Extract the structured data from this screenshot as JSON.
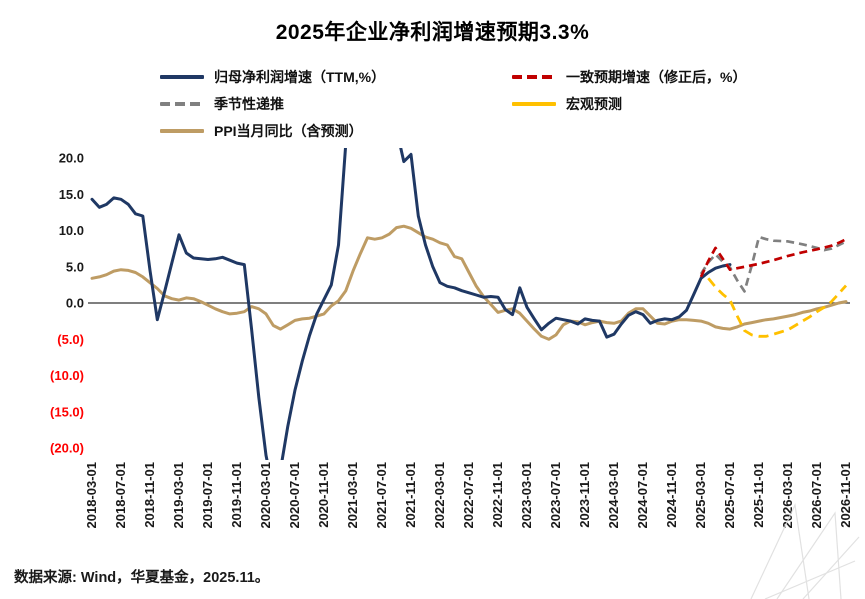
{
  "title": "2025年企业净利润增速预期3.3%",
  "source_note": "数据来源: Wind，华夏基金，2025.11。",
  "chart_data": {
    "type": "line",
    "title": "2025年企业净利润增速预期3.3%",
    "legend_position": "top",
    "grid": false,
    "months_span": 104,
    "x_tick_labels": [
      "2018-03-01",
      "2018-07-01",
      "2018-11-01",
      "2019-03-01",
      "2019-07-01",
      "2019-11-01",
      "2020-03-01",
      "2020-07-01",
      "2020-11-01",
      "2021-03-01",
      "2021-07-01",
      "2021-11-01",
      "2022-03-01",
      "2022-07-01",
      "2022-11-01",
      "2023-03-01",
      "2023-07-01",
      "2023-11-01",
      "2024-03-01",
      "2024-07-01",
      "2024-11-01",
      "2025-03-01",
      "2025-07-01",
      "2025-11-01",
      "2026-03-01",
      "2026-07-01",
      "2026-11-01"
    ],
    "ylim": [
      -20,
      20
    ],
    "y_ticks": [
      20,
      15,
      10,
      5,
      0,
      -5,
      -10,
      -15,
      -20
    ],
    "y_tick_labels": [
      "20.0",
      "15.0",
      "10.0",
      "5.0",
      "0.0",
      "(5.0)",
      "(10.0)",
      "(15.0)",
      "(20.0)"
    ],
    "axis": {
      "text_color": "#1a1a1a",
      "negative_color": "#ff0000",
      "zero_line_color": "#333333"
    },
    "series": [
      {
        "name": "归母净利润增速（TTM,%）",
        "color": "#1F3864",
        "style": "solid",
        "legend_marker": "solid",
        "width": 3,
        "z": 2,
        "points": [
          [
            0,
            14.3
          ],
          [
            1,
            13.2
          ],
          [
            2,
            13.6
          ],
          [
            3,
            14.5
          ],
          [
            4,
            14.3
          ],
          [
            5,
            13.6
          ],
          [
            6,
            12.3
          ],
          [
            7,
            12.0
          ],
          [
            8,
            4.5
          ],
          [
            9,
            -2.3
          ],
          [
            10,
            1.5
          ],
          [
            11,
            5.5
          ],
          [
            12,
            9.4
          ],
          [
            13,
            6.9
          ],
          [
            14,
            6.2
          ],
          [
            15,
            6.1
          ],
          [
            16,
            6.0
          ],
          [
            17,
            6.1
          ],
          [
            18,
            6.3
          ],
          [
            19,
            5.9
          ],
          [
            20,
            5.5
          ],
          [
            21,
            5.3
          ],
          [
            22,
            -3.5
          ],
          [
            23,
            -13
          ],
          [
            24,
            -21
          ],
          [
            25,
            -26
          ],
          [
            26,
            -23
          ],
          [
            27,
            -17
          ],
          [
            28,
            -12
          ],
          [
            29,
            -8
          ],
          [
            30,
            -4.5
          ],
          [
            31,
            -1.5
          ],
          [
            32,
            0.5
          ],
          [
            33,
            2.5
          ],
          [
            34,
            8
          ],
          [
            35,
            22
          ],
          [
            36,
            40
          ],
          [
            38,
            46
          ],
          [
            40,
            34
          ],
          [
            41,
            26
          ],
          [
            42,
            24
          ],
          [
            43,
            19.5
          ],
          [
            44,
            20.5
          ],
          [
            45,
            12
          ],
          [
            46,
            8
          ],
          [
            47,
            5
          ],
          [
            48,
            2.8
          ],
          [
            49,
            2.3
          ],
          [
            50,
            2.1
          ],
          [
            51,
            1.7
          ],
          [
            52,
            1.4
          ],
          [
            53,
            1.1
          ],
          [
            54,
            0.8
          ],
          [
            55,
            0.9
          ],
          [
            56,
            0.8
          ],
          [
            57,
            -0.9
          ],
          [
            58,
            -1.6
          ],
          [
            59,
            2.1
          ],
          [
            60,
            -0.6
          ],
          [
            61,
            -2.2
          ],
          [
            62,
            -3.7
          ],
          [
            63,
            -2.8
          ],
          [
            64,
            -2.1
          ],
          [
            65,
            -2.3
          ],
          [
            66,
            -2.5
          ],
          [
            67,
            -2.9
          ],
          [
            68,
            -2.2
          ],
          [
            69,
            -2.4
          ],
          [
            70,
            -2.5
          ],
          [
            71,
            -4.7
          ],
          [
            72,
            -4.3
          ],
          [
            73,
            -2.9
          ],
          [
            74,
            -1.7
          ],
          [
            75,
            -1.2
          ],
          [
            76,
            -1.6
          ],
          [
            77,
            -2.8
          ],
          [
            78,
            -2.4
          ],
          [
            79,
            -2.2
          ],
          [
            80,
            -2.3
          ],
          [
            81,
            -1.9
          ],
          [
            82,
            -1.0
          ],
          [
            83,
            1.2
          ],
          [
            84,
            3.4
          ],
          [
            85,
            4.2
          ],
          [
            86,
            4.8
          ],
          [
            87,
            5.1
          ],
          [
            88,
            5.3
          ]
        ]
      },
      {
        "name": "一致预期增速（修正后，%）",
        "color": "#C00000",
        "style": "dashed",
        "legend_marker": "dashed",
        "dash": "8 5",
        "width": 2.7,
        "z": 5,
        "points": [
          [
            84,
            3.6
          ],
          [
            85,
            5.8
          ],
          [
            86,
            7.6
          ],
          [
            87,
            6.1
          ],
          [
            88,
            4.6
          ],
          [
            89,
            4.8
          ],
          [
            90,
            5.0
          ],
          [
            92,
            5.4
          ],
          [
            94,
            5.9
          ],
          [
            96,
            6.5
          ],
          [
            98,
            7.0
          ],
          [
            100,
            7.4
          ],
          [
            102,
            7.9
          ],
          [
            103,
            8.3
          ],
          [
            104,
            8.8
          ]
        ]
      },
      {
        "name": "季节性递推",
        "color": "#808080",
        "style": "dashed",
        "legend_marker": "dashed",
        "dash": "8 5",
        "width": 2.7,
        "z": 3,
        "points": [
          [
            84,
            4.0
          ],
          [
            85,
            5.6
          ],
          [
            86,
            6.7
          ],
          [
            87,
            5.7
          ],
          [
            88,
            4.9
          ],
          [
            89,
            3.1
          ],
          [
            90,
            1.6
          ],
          [
            91,
            5.2
          ],
          [
            92,
            9.1
          ],
          [
            93,
            8.8
          ],
          [
            94,
            8.6
          ],
          [
            96,
            8.5
          ],
          [
            98,
            8.1
          ],
          [
            100,
            7.6
          ],
          [
            101,
            7.3
          ],
          [
            102,
            7.5
          ],
          [
            103,
            8.0
          ],
          [
            104,
            8.5
          ]
        ]
      },
      {
        "name": "宏观预测",
        "color": "#FFC000",
        "style": "dashed",
        "legend_marker": "solid",
        "dash": "10 6",
        "width": 2.8,
        "z": 4,
        "points": [
          [
            85,
            3.4
          ],
          [
            86,
            2.2
          ],
          [
            87,
            1.2
          ],
          [
            88,
            0.4
          ],
          [
            89,
            -1.8
          ],
          [
            90,
            -3.8
          ],
          [
            91,
            -4.4
          ],
          [
            92,
            -4.6
          ],
          [
            93,
            -4.6
          ],
          [
            94,
            -4.3
          ],
          [
            95,
            -4.0
          ],
          [
            96,
            -3.7
          ],
          [
            97,
            -3.1
          ],
          [
            98,
            -2.5
          ],
          [
            99,
            -1.9
          ],
          [
            100,
            -1.2
          ],
          [
            101,
            -0.6
          ],
          [
            102,
            0.2
          ],
          [
            103,
            1.3
          ],
          [
            104,
            2.4
          ]
        ]
      },
      {
        "name": "PPI当月同比（含预测）",
        "color": "#BE9C64",
        "style": "solid",
        "legend_marker": "solid",
        "width": 3,
        "z": 1,
        "points": [
          [
            0,
            3.4
          ],
          [
            1,
            3.6
          ],
          [
            2,
            3.9
          ],
          [
            3,
            4.4
          ],
          [
            4,
            4.6
          ],
          [
            5,
            4.5
          ],
          [
            6,
            4.2
          ],
          [
            7,
            3.6
          ],
          [
            8,
            2.8
          ],
          [
            9,
            2.0
          ],
          [
            10,
            1.0
          ],
          [
            11,
            0.6
          ],
          [
            12,
            0.4
          ],
          [
            13,
            0.7
          ],
          [
            14,
            0.6
          ],
          [
            15,
            0.2
          ],
          [
            16,
            -0.3
          ],
          [
            17,
            -0.8
          ],
          [
            18,
            -1.2
          ],
          [
            19,
            -1.5
          ],
          [
            20,
            -1.4
          ],
          [
            21,
            -1.2
          ],
          [
            22,
            -0.5
          ],
          [
            23,
            -0.8
          ],
          [
            24,
            -1.5
          ],
          [
            25,
            -3.1
          ],
          [
            26,
            -3.6
          ],
          [
            27,
            -3.0
          ],
          [
            28,
            -2.4
          ],
          [
            29,
            -2.2
          ],
          [
            30,
            -2.1
          ],
          [
            31,
            -1.8
          ],
          [
            32,
            -1.5
          ],
          [
            33,
            -0.4
          ],
          [
            34,
            0.3
          ],
          [
            35,
            1.7
          ],
          [
            36,
            4.4
          ],
          [
            37,
            6.8
          ],
          [
            38,
            9.0
          ],
          [
            39,
            8.8
          ],
          [
            40,
            9.0
          ],
          [
            41,
            9.5
          ],
          [
            42,
            10.4
          ],
          [
            43,
            10.6
          ],
          [
            44,
            10.3
          ],
          [
            45,
            9.7
          ],
          [
            46,
            9.1
          ],
          [
            47,
            8.8
          ],
          [
            48,
            8.3
          ],
          [
            49,
            8.0
          ],
          [
            50,
            6.4
          ],
          [
            51,
            6.1
          ],
          [
            52,
            4.2
          ],
          [
            53,
            2.3
          ],
          [
            54,
            0.9
          ],
          [
            55,
            -0.2
          ],
          [
            56,
            -1.3
          ],
          [
            57,
            -1.0
          ],
          [
            58,
            -0.8
          ],
          [
            59,
            -1.4
          ],
          [
            60,
            -2.5
          ],
          [
            61,
            -3.6
          ],
          [
            62,
            -4.6
          ],
          [
            63,
            -5.0
          ],
          [
            64,
            -4.4
          ],
          [
            65,
            -3.0
          ],
          [
            66,
            -2.5
          ],
          [
            67,
            -2.6
          ],
          [
            68,
            -3.0
          ],
          [
            69,
            -2.7
          ],
          [
            70,
            -2.5
          ],
          [
            71,
            -2.7
          ],
          [
            72,
            -2.8
          ],
          [
            73,
            -2.5
          ],
          [
            74,
            -1.4
          ],
          [
            75,
            -0.8
          ],
          [
            76,
            -0.8
          ],
          [
            77,
            -1.8
          ],
          [
            78,
            -2.8
          ],
          [
            79,
            -2.9
          ],
          [
            80,
            -2.5
          ],
          [
            81,
            -2.3
          ],
          [
            82,
            -2.3
          ],
          [
            83,
            -2.4
          ],
          [
            84,
            -2.5
          ],
          [
            85,
            -2.8
          ],
          [
            86,
            -3.3
          ],
          [
            87,
            -3.5
          ],
          [
            88,
            -3.6
          ],
          [
            89,
            -3.3
          ],
          [
            90,
            -2.9
          ],
          [
            91,
            -2.7
          ],
          [
            92,
            -2.5
          ],
          [
            93,
            -2.3
          ],
          [
            94,
            -2.2
          ],
          [
            95,
            -2.0
          ],
          [
            96,
            -1.8
          ],
          [
            97,
            -1.6
          ],
          [
            98,
            -1.3
          ],
          [
            99,
            -1.1
          ],
          [
            100,
            -0.8
          ],
          [
            101,
            -0.6
          ],
          [
            102,
            -0.3
          ],
          [
            103,
            0.0
          ],
          [
            104,
            0.2
          ]
        ]
      }
    ]
  }
}
